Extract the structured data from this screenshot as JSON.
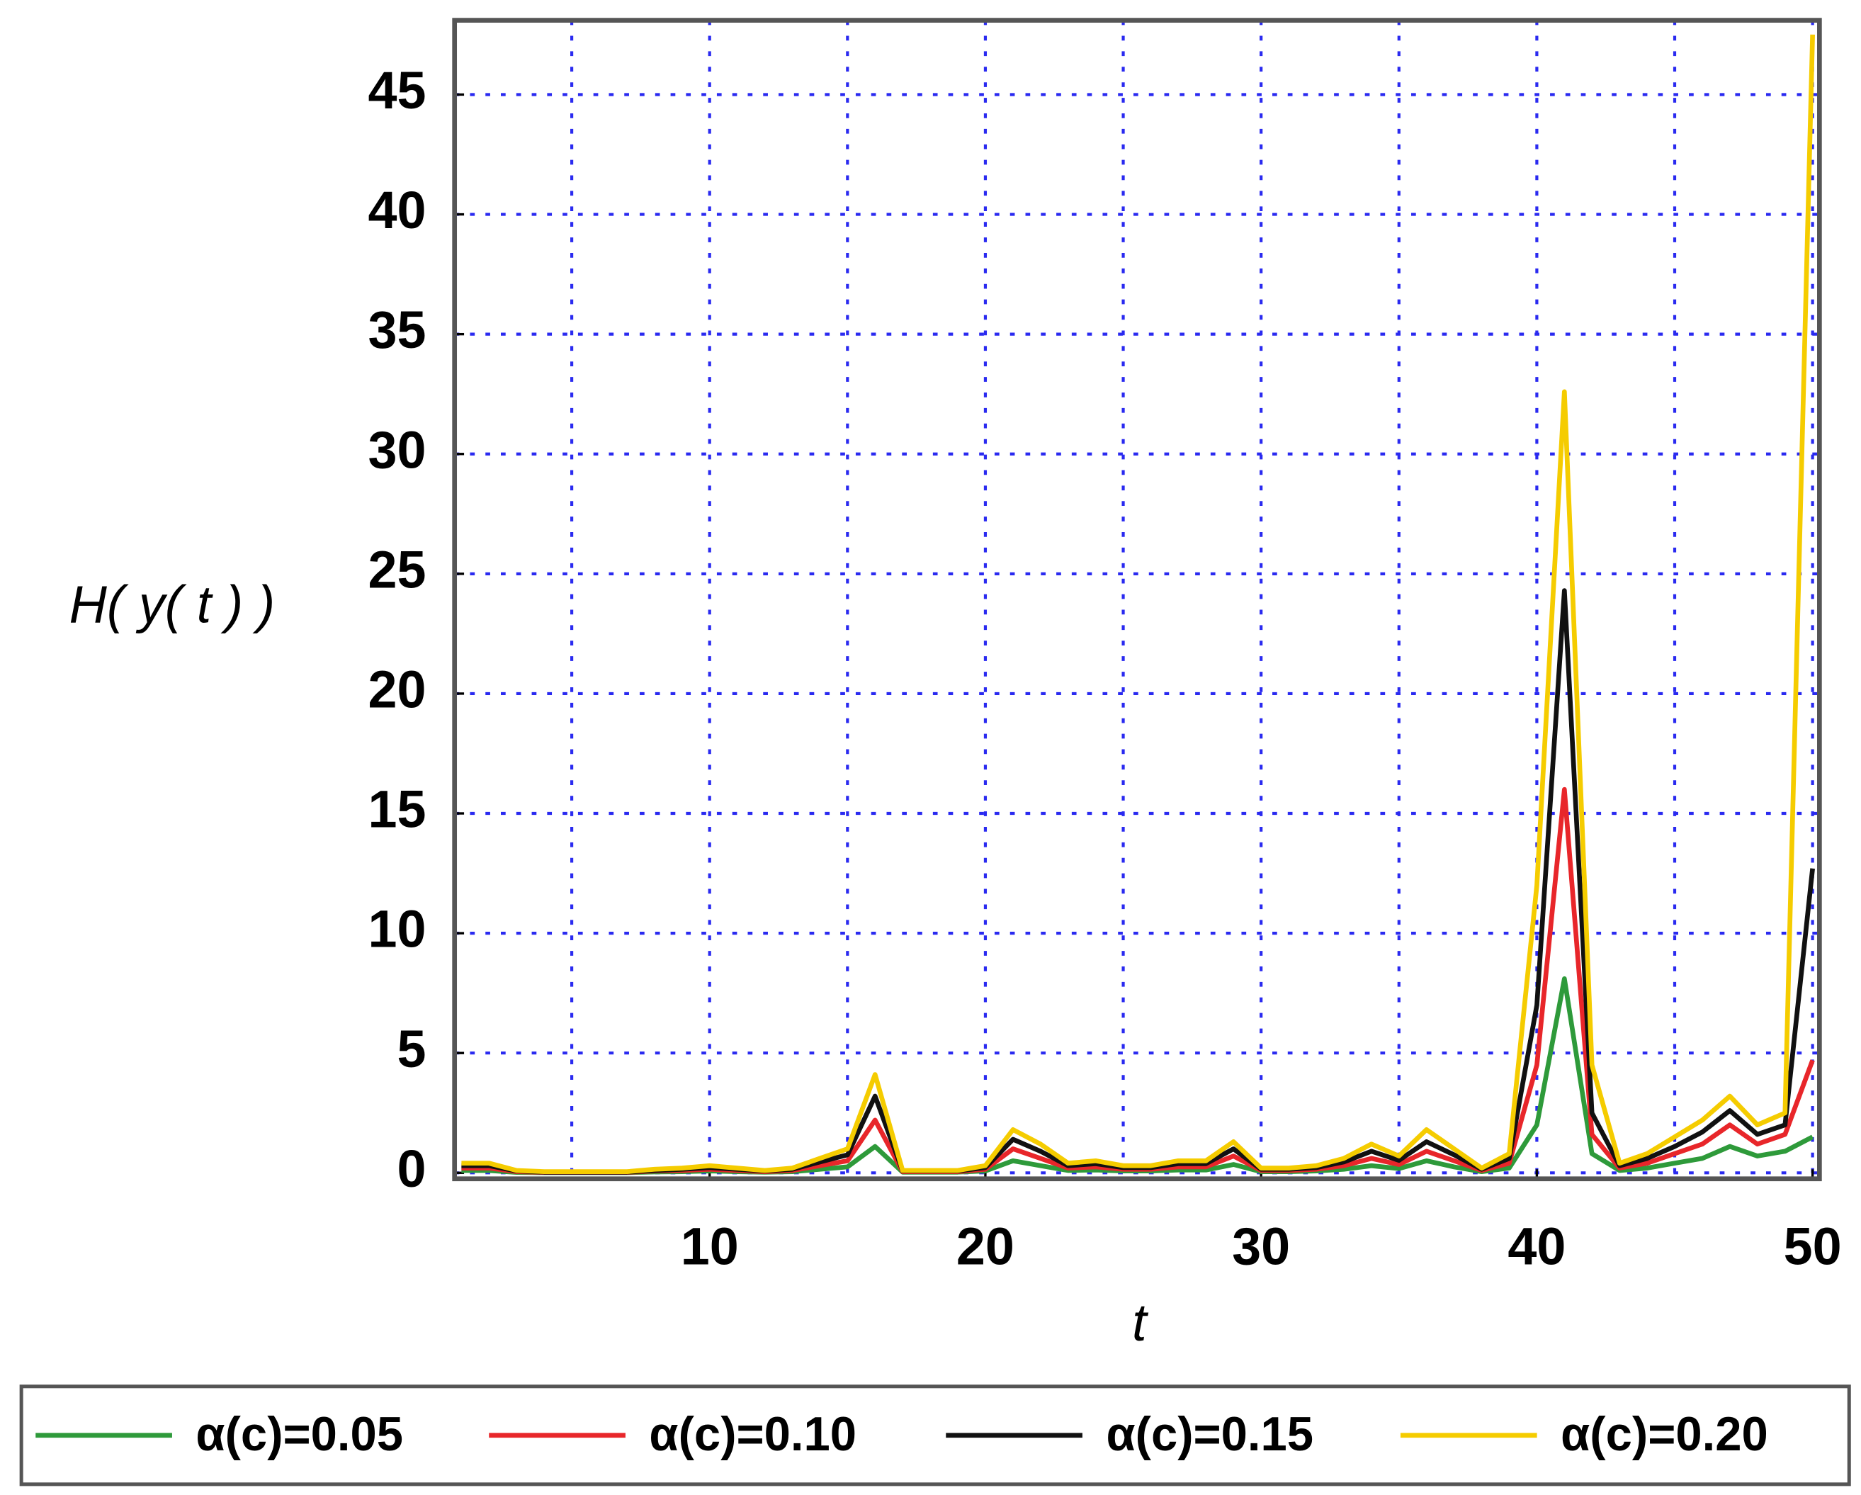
{
  "chart_data": {
    "type": "line",
    "x_label": "t",
    "y_label": "H( y( t ) )",
    "x": [
      1,
      2,
      3,
      4,
      5,
      6,
      7,
      8,
      9,
      10,
      11,
      12,
      13,
      14,
      15,
      16,
      17,
      18,
      19,
      20,
      21,
      22,
      23,
      24,
      25,
      26,
      27,
      28,
      29,
      30,
      31,
      32,
      33,
      34,
      35,
      36,
      37,
      38,
      39,
      40,
      41,
      42,
      43,
      44,
      45,
      46,
      47,
      48,
      49,
      50
    ],
    "series": [
      {
        "name": "α(c)=0.05",
        "color": "#2e9a3a",
        "values": [
          0.1,
          0.1,
          0.02,
          0.01,
          0.01,
          0.01,
          0.01,
          0.04,
          0.05,
          0.08,
          0.05,
          0.03,
          0.05,
          0.15,
          0.25,
          1.1,
          0.03,
          0.03,
          0.03,
          0.08,
          0.5,
          0.3,
          0.1,
          0.12,
          0.08,
          0.08,
          0.12,
          0.12,
          0.35,
          0.05,
          0.05,
          0.08,
          0.15,
          0.3,
          0.18,
          0.5,
          0.25,
          0.05,
          0.2,
          2,
          8.1,
          0.8,
          0.1,
          0.2,
          0.4,
          0.6,
          1.1,
          0.7,
          0.9,
          1.5
        ]
      },
      {
        "name": "α(c)=0.10",
        "color": "#e8262a",
        "values": [
          0.2,
          0.2,
          0.05,
          0.02,
          0.02,
          0.02,
          0.02,
          0.08,
          0.1,
          0.15,
          0.1,
          0.05,
          0.1,
          0.3,
          0.5,
          2.2,
          0.05,
          0.05,
          0.05,
          0.15,
          1.0,
          0.6,
          0.2,
          0.25,
          0.15,
          0.15,
          0.25,
          0.25,
          0.7,
          0.1,
          0.1,
          0.15,
          0.3,
          0.6,
          0.35,
          0.9,
          0.5,
          0.1,
          0.4,
          4.5,
          16,
          1.6,
          0.2,
          0.4,
          0.8,
          1.2,
          2.0,
          1.2,
          1.6,
          4.7
        ]
      },
      {
        "name": "α(c)=0.15",
        "color": "#111111",
        "values": [
          0.3,
          0.3,
          0.08,
          0.03,
          0.03,
          0.03,
          0.03,
          0.1,
          0.15,
          0.22,
          0.15,
          0.08,
          0.15,
          0.45,
          0.75,
          3.2,
          0.08,
          0.08,
          0.08,
          0.22,
          1.4,
          0.9,
          0.3,
          0.38,
          0.22,
          0.22,
          0.38,
          0.38,
          1.0,
          0.15,
          0.15,
          0.22,
          0.45,
          0.9,
          0.52,
          1.3,
          0.75,
          0.15,
          0.6,
          7,
          24.3,
          2.5,
          0.3,
          0.6,
          1.1,
          1.7,
          2.6,
          1.6,
          2.0,
          12.7
        ]
      },
      {
        "name": "α(c)=0.20",
        "color": "#f5cc00",
        "values": [
          0.4,
          0.4,
          0.1,
          0.05,
          0.05,
          0.05,
          0.05,
          0.15,
          0.2,
          0.3,
          0.2,
          0.1,
          0.2,
          0.6,
          1.0,
          4.1,
          0.1,
          0.1,
          0.1,
          0.3,
          1.8,
          1.2,
          0.4,
          0.5,
          0.3,
          0.3,
          0.5,
          0.5,
          1.3,
          0.2,
          0.2,
          0.3,
          0.6,
          1.2,
          0.7,
          1.8,
          1.0,
          0.2,
          0.8,
          12,
          32.6,
          4.5,
          0.4,
          0.8,
          1.5,
          2.2,
          3.2,
          2.0,
          2.5,
          47.5
        ]
      }
    ],
    "xlim": [
      0.75,
      50.25
    ],
    "ylim": [
      -0.25,
      48.1
    ],
    "xticks": [
      10,
      20,
      30,
      40,
      50
    ],
    "xgrid": [
      5,
      15,
      25,
      35,
      45
    ],
    "yticks": [
      0,
      5,
      10,
      15,
      20,
      25,
      30,
      35,
      40,
      45
    ],
    "grid": true,
    "grid_color": "#2a2af0",
    "legend": "bottom"
  }
}
